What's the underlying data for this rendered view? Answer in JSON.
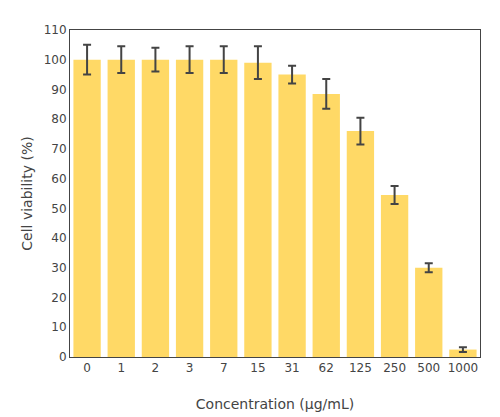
{
  "chart_data": {
    "type": "bar",
    "categories": [
      "0",
      "1",
      "2",
      "3",
      "7",
      "15",
      "31",
      "62",
      "125",
      "250",
      "500",
      "1000"
    ],
    "values": [
      100.0,
      100.0,
      100.0,
      100.0,
      100.0,
      99.0,
      95.0,
      88.5,
      76.0,
      54.5,
      30.0,
      2.5
    ],
    "errors": [
      5.0,
      4.5,
      4.0,
      4.5,
      4.5,
      5.5,
      3.0,
      5.0,
      4.5,
      3.0,
      1.5,
      0.8
    ],
    "color": "#FFD966",
    "xlabel": "Concentration (µg/mL)",
    "ylabel": "Cell viability (%)",
    "ylim": [
      0,
      110
    ],
    "yticks": [
      0,
      10,
      20,
      30,
      40,
      50,
      60,
      70,
      80,
      90,
      100,
      110
    ],
    "grid": false
  }
}
